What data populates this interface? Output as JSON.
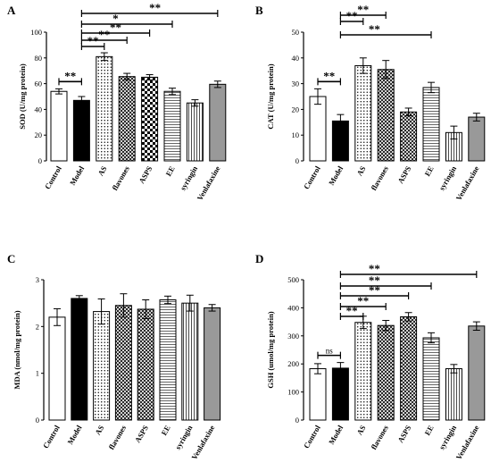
{
  "chart_data": [
    {
      "type": "bar",
      "panel": "A",
      "ylabel": "SOD (U/mg protein)",
      "ylim": [
        0,
        100
      ],
      "yticks": [
        "0",
        "20",
        "40",
        "60",
        "80",
        "100"
      ],
      "yticks_values": [
        0,
        20,
        40,
        60,
        80,
        100
      ],
      "categories": [
        "Control",
        "Model",
        "AS",
        "flavones",
        "ASPS",
        "EE",
        "syringin",
        "Venlafaxine"
      ],
      "values": [
        54,
        47,
        81,
        65.5,
        65,
        54,
        45,
        59.5
      ],
      "errors": [
        2,
        3,
        3,
        2.5,
        2,
        2.5,
        2.5,
        2.5
      ],
      "patterns": [
        "white",
        "black",
        "dots",
        "crosshatch",
        "checker",
        "hlines",
        "vlines",
        "gray"
      ],
      "significance": [
        {
          "from": 0,
          "to": 1,
          "label": "**"
        },
        {
          "from": 1,
          "to": 2,
          "label": "**"
        },
        {
          "from": 1,
          "to": 3,
          "label": "**"
        },
        {
          "from": 1,
          "to": 4,
          "label": "**"
        },
        {
          "from": 1,
          "to": 5,
          "label": "*"
        },
        {
          "from": 1,
          "to": 7,
          "label": "**"
        }
      ]
    },
    {
      "type": "bar",
      "panel": "B",
      "ylabel": "CAT (U/mg protein)",
      "ylim": [
        0,
        50
      ],
      "yticks": [
        "0",
        "10",
        "20",
        "30",
        "40",
        "50"
      ],
      "yticks_values": [
        0,
        10,
        20,
        30,
        40,
        50
      ],
      "categories": [
        "Control",
        "Model",
        "AS",
        "flavones",
        "ASPS",
        "EE",
        "syringin",
        "Venlafaxine"
      ],
      "values": [
        25,
        15.5,
        37,
        35.5,
        19,
        28.5,
        11,
        17
      ],
      "errors": [
        3,
        2.5,
        3,
        3.5,
        1.5,
        2,
        2.5,
        1.5
      ],
      "patterns": [
        "white",
        "black",
        "dots",
        "crosshatch",
        "crosshatch",
        "hlines",
        "vlines",
        "gray"
      ],
      "significance": [
        {
          "from": 0,
          "to": 1,
          "label": "**"
        },
        {
          "from": 1,
          "to": 2,
          "label": "**"
        },
        {
          "from": 1,
          "to": 3,
          "label": "**"
        },
        {
          "from": 1,
          "to": 5,
          "label": "**"
        }
      ]
    },
    {
      "type": "bar",
      "panel": "C",
      "ylabel": "MDA (nmol/mg protein)",
      "ylim": [
        0,
        3
      ],
      "yticks": [
        "0",
        "1",
        "2",
        "3"
      ],
      "yticks_values": [
        0,
        1,
        2,
        3
      ],
      "categories": [
        "Control",
        "Model",
        "AS",
        "flavones",
        "ASPS",
        "EE",
        "syringin",
        "Venlafaxine"
      ],
      "values": [
        2.2,
        2.6,
        2.32,
        2.45,
        2.37,
        2.57,
        2.5,
        2.4
      ],
      "errors": [
        0.18,
        0.06,
        0.27,
        0.25,
        0.2,
        0.08,
        0.17,
        0.07
      ],
      "patterns": [
        "white",
        "black",
        "dots",
        "crosshatch",
        "crosshatch",
        "hlines",
        "vlines",
        "gray"
      ],
      "significance": []
    },
    {
      "type": "bar",
      "panel": "D",
      "ylabel": "GSH (umol/mg protein)",
      "ylim": [
        0,
        500
      ],
      "yticks": [
        "0",
        "100",
        "200",
        "300",
        "400",
        "500"
      ],
      "yticks_values": [
        0,
        100,
        200,
        300,
        400,
        500
      ],
      "categories": [
        "Control",
        "Model",
        "AS",
        "flavones",
        "ASPS",
        "EE",
        "syringin",
        "Venlafaxine"
      ],
      "values": [
        183,
        185,
        348,
        337,
        368,
        293,
        183,
        335
      ],
      "errors": [
        18,
        20,
        22,
        18,
        15,
        18,
        15,
        15
      ],
      "patterns": [
        "white",
        "black",
        "dots",
        "crosshatch",
        "crosshatch",
        "hlines",
        "vlines",
        "gray"
      ],
      "significance": [
        {
          "from": 0,
          "to": 1,
          "label": "ns"
        },
        {
          "from": 1,
          "to": 2,
          "label": "**"
        },
        {
          "from": 1,
          "to": 3,
          "label": "**"
        },
        {
          "from": 1,
          "to": 4,
          "label": "**"
        },
        {
          "from": 1,
          "to": 5,
          "label": "**"
        },
        {
          "from": 1,
          "to": 7,
          "label": "**"
        }
      ]
    }
  ]
}
